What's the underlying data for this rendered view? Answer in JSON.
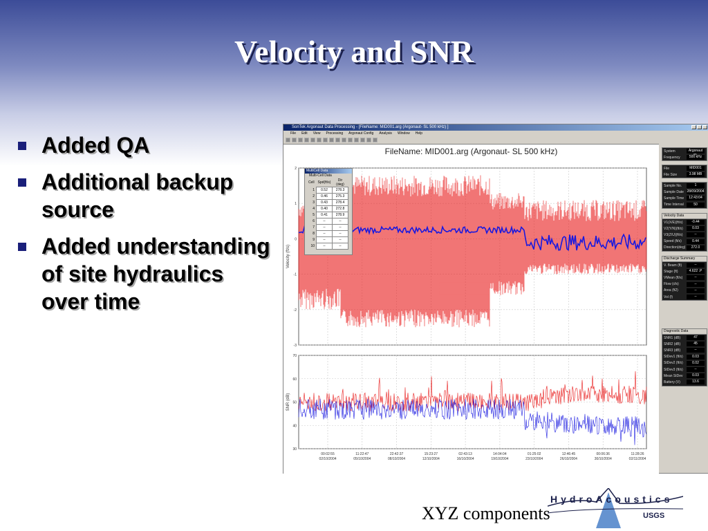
{
  "slide": {
    "title": "Velocity and SNR",
    "bullets": [
      "Added QA",
      "Additional backup source",
      "Added understanding of site hydraulics over time"
    ],
    "footer": "XYZ components",
    "logo_text": "HydroAcoustics",
    "logo_sub": "USGS"
  },
  "window": {
    "title": "SonTek Argonaut Data Processing - [FileName: MID001.arg  (Argonaut- SL  500 kHz) ]",
    "menu": [
      "File",
      "Edit",
      "View",
      "Processing",
      "Argonaut Config",
      "Analysis",
      "Window",
      "Help"
    ]
  },
  "plot": {
    "file_label": "FileName: MID001.arg  (Argonaut- SL  500 kHz)",
    "velocity_ylabel": "Velocity (ft/s)",
    "snr_ylabel": "SNR (dB)",
    "velocity_ticks": [
      "2",
      "1",
      "0",
      "-1",
      "-2",
      "-3"
    ],
    "snr_ticks": [
      "70",
      "60",
      "50",
      "40",
      "30"
    ],
    "x_ticks": [
      {
        "time": "00:02:55",
        "date": "02/10/2004"
      },
      {
        "time": "11:22:47",
        "date": "05/10/2004"
      },
      {
        "time": "22:42:37",
        "date": "08/10/2004"
      },
      {
        "time": "15:23:27",
        "date": "12/10/2004"
      },
      {
        "time": "02:43:13",
        "date": "16/10/2004"
      },
      {
        "time": "14:04:04",
        "date": "19/10/2004"
      },
      {
        "time": "01:25:02",
        "date": "23/10/2004"
      },
      {
        "time": "12:46:45",
        "date": "26/10/2004"
      },
      {
        "time": "00:06:36",
        "date": "30/10/2004"
      },
      {
        "time": "11:28:26",
        "date": "02/11/2004"
      }
    ]
  },
  "multicell": {
    "title": "MultiCell Data",
    "subtitle": "Multi-Cell Data",
    "headers": [
      "Cell",
      "Spd(ft/s)",
      "Dir (deg)"
    ],
    "rows": [
      {
        "cell": "1",
        "spd": "0.52",
        "dir": "278.3"
      },
      {
        "cell": "2",
        "spd": "0.46",
        "dir": "275.3"
      },
      {
        "cell": "3",
        "spd": "0.43",
        "dir": "278.4"
      },
      {
        "cell": "4",
        "spd": "0.40",
        "dir": "272.8"
      },
      {
        "cell": "5",
        "spd": "0.41",
        "dir": "278.9"
      },
      {
        "cell": "6",
        "spd": "--",
        "dir": "--"
      },
      {
        "cell": "7",
        "spd": "--",
        "dir": "--"
      },
      {
        "cell": "8",
        "spd": "--",
        "dir": "--"
      },
      {
        "cell": "9",
        "spd": "--",
        "dir": "--"
      },
      {
        "cell": "10",
        "spd": "--",
        "dir": "--"
      }
    ]
  },
  "panel": {
    "system": [
      {
        "label": "System",
        "value": "Argonaut SL"
      },
      {
        "label": "Frequency",
        "value": "500 kHz"
      }
    ],
    "file": [
      {
        "label": "File",
        "value": "MID001"
      },
      {
        "label": "File Size",
        "value": "3.98 MB"
      }
    ],
    "sample": [
      {
        "label": "Sample No.",
        "value": "1"
      },
      {
        "label": "Sample Date",
        "value": "28/09/2004"
      },
      {
        "label": "Sample Time",
        "value": "12:43:04"
      },
      {
        "label": "Time Interval",
        "value": "50"
      }
    ],
    "velocity_header": "Velocity Data",
    "velocity": [
      {
        "label": "V1(X/E)(ft/s)",
        "value": "-0.44"
      },
      {
        "label": "V2(Y/N)(ft/s)",
        "value": "0.03"
      },
      {
        "label": "V3(Z/U)(ft/s)",
        "value": "--"
      },
      {
        "label": "Speed (ft/s)",
        "value": "0.44"
      },
      {
        "label": "Direction(deg)",
        "value": "272.0"
      }
    ],
    "discharge_header": "Discharge Summary",
    "discharge": [
      {
        "label": "V. Beam (ft)",
        "value": "--"
      },
      {
        "label": "Stage (ft)",
        "value": "4.622 .P"
      },
      {
        "label": "VMean (ft/s)",
        "value": "--"
      },
      {
        "label": "Flow (cfs)",
        "value": "--"
      },
      {
        "label": "Area (ft2)",
        "value": "--"
      },
      {
        "label": "Vol (f)",
        "value": "--"
      }
    ],
    "diagnostic_header": "Diagnostic Data",
    "diagnostic": [
      {
        "label": "SNR1 (dB)",
        "value": "47"
      },
      {
        "label": "SNR2 (dB)",
        "value": "45"
      },
      {
        "label": "SNR3 (dB)",
        "value": "--"
      },
      {
        "label": "StDev1 (ft/s)",
        "value": "0.03"
      },
      {
        "label": "StDev2 (ft/s)",
        "value": "0.02"
      },
      {
        "label": "StDev3 (ft/s)",
        "value": "--"
      },
      {
        "label": "Mean StDev",
        "value": "0.03"
      },
      {
        "label": "Battery (V)",
        "value": "13.6"
      }
    ]
  },
  "colors": {
    "series_x": "#e81818",
    "series_y": "#1818e0",
    "title_shadow": "#1a1f4a"
  }
}
